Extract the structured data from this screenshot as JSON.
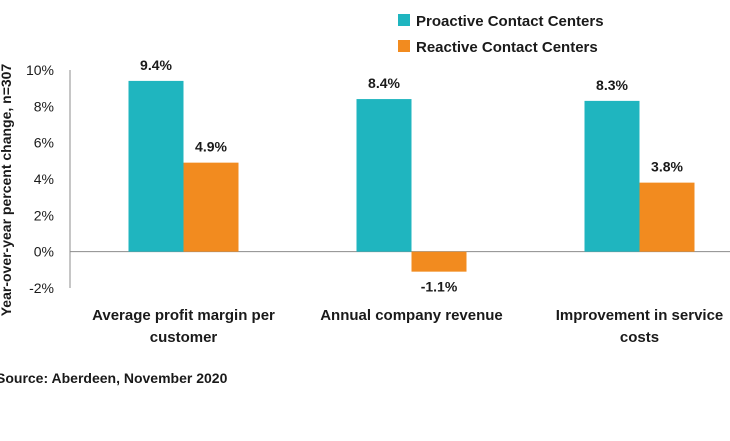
{
  "chart_data": {
    "type": "bar",
    "categories": [
      [
        "Average profit margin per",
        "customer"
      ],
      [
        "Annual company revenue"
      ],
      [
        "Improvement in service",
        "costs"
      ]
    ],
    "series": [
      {
        "name": "Proactive Contact Centers",
        "color": "#1fb5bf",
        "values": [
          9.4,
          8.4,
          8.3
        ],
        "labels": [
          "9.4%",
          "8.4%",
          "8.3%"
        ]
      },
      {
        "name": "Reactive Contact Centers",
        "color": "#f28b1f",
        "values": [
          4.9,
          -1.1,
          3.8
        ],
        "labels": [
          "4.9%",
          "-1.1%",
          "3.8%"
        ]
      }
    ],
    "ylabel": "Year-over-year percent change, n=307",
    "ylim": [
      -2,
      10
    ],
    "yticks": [
      -2,
      0,
      2,
      4,
      6,
      8,
      10
    ],
    "ytick_labels": [
      "-2%",
      "0%",
      "2%",
      "4%",
      "6%",
      "8%",
      "10%"
    ],
    "legend_position": "top-right",
    "grid": false
  },
  "source": "Source: Aberdeen, November 2020"
}
